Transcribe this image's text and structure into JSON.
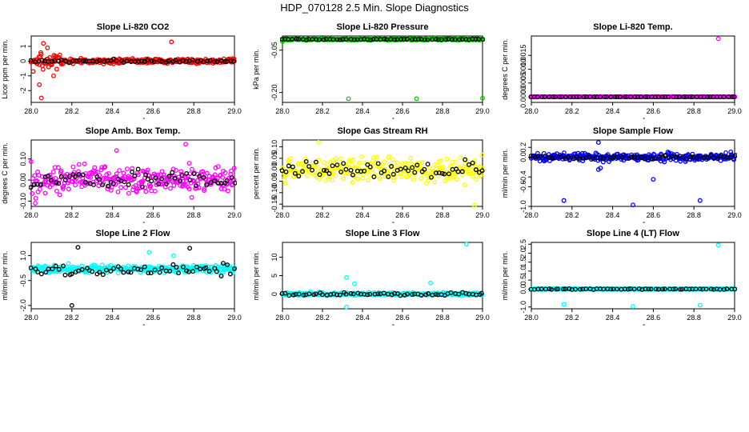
{
  "figure": {
    "title": "HDP_070128  2.5 Min. Slope Diagnostics",
    "background": "#ffffff",
    "overlay_color": "#000000"
  },
  "chart_data": [
    {
      "id": "co2",
      "type": "scatter",
      "title": "Slope Li-820 CO2",
      "ylabel": "Licor ppm per min.",
      "color": "#ff0000",
      "xlim": [
        28.0,
        29.0
      ],
      "ylim": [
        -2.8,
        1.7
      ],
      "x_ticks": [
        "28.0",
        "28.2",
        "28.4",
        "28.6",
        "28.8",
        "29.0"
      ],
      "y_ticks": [
        {
          "value": -2,
          "label": "-2"
        },
        {
          "value": -1,
          "label": "-1"
        },
        {
          "value": 0,
          "label": "0"
        },
        {
          "value": 1,
          "label": "1"
        }
      ],
      "series": [
        {
          "name": "all",
          "spread": 0.18,
          "bursts": [
            [
              28.03,
              28.15,
              0.6
            ]
          ],
          "outliers": [
            [
              28.01,
              -0.7
            ],
            [
              28.05,
              -2.5
            ],
            [
              28.06,
              1.2
            ],
            [
              28.08,
              0.9
            ],
            [
              28.11,
              -1.0
            ],
            [
              28.04,
              -1.6
            ],
            [
              28.69,
              1.3
            ]
          ]
        },
        {
          "name": "selected",
          "spread": 0.12,
          "outliers": []
        }
      ]
    },
    {
      "id": "pressure",
      "type": "scatter",
      "title": "Slope Li-820 Pressure",
      "ylabel": "kPa per min.",
      "color": "#00cc00",
      "xlim": [
        28.0,
        29.0
      ],
      "ylim": [
        -0.235,
        0.0
      ],
      "x_ticks": [
        "28.0",
        "28.2",
        "28.4",
        "28.6",
        "28.8",
        "29.0"
      ],
      "y_ticks": [
        {
          "value": -0.05,
          "label": "-0.05"
        },
        {
          "value": -0.2,
          "label": "-0.20"
        }
      ],
      "series": [
        {
          "name": "all",
          "spread": 0.004,
          "center": -0.012,
          "bursts": [],
          "outliers": [
            [
              28.33,
              -0.222
            ],
            [
              28.67,
              -0.222
            ],
            [
              29.0,
              -0.22
            ],
            [
              28.0,
              -0.02
            ]
          ]
        },
        {
          "name": "selected",
          "spread": 0.002,
          "center": -0.012,
          "outliers": []
        }
      ]
    },
    {
      "id": "temp",
      "type": "scatter",
      "title": "Slope Li-820 Temp.",
      "ylabel": "degrees C per min.",
      "color": "#ff00ff",
      "xlim": [
        28.0,
        29.0
      ],
      "ylim": [
        -0.0002,
        0.0022
      ],
      "x_ticks": [
        "28.0",
        "28.2",
        "28.4",
        "28.6",
        "28.8",
        "29.0"
      ],
      "y_ticks": [
        {
          "value": 0.0,
          "label": "0.0000"
        },
        {
          "value": 0.0005,
          "label": "0.0005"
        },
        {
          "value": 0.001,
          "label": "0.0010"
        },
        {
          "value": 0.0015,
          "label": "0.0015"
        }
      ],
      "series": [
        {
          "name": "all",
          "spread": 0.0,
          "bursts": [],
          "outliers": [
            [
              28.92,
              0.0021
            ]
          ]
        },
        {
          "name": "selected",
          "spread": 0.0,
          "outliers": []
        }
      ]
    },
    {
      "id": "ambbox",
      "type": "scatter",
      "title": "Slope Amb. Box Temp.",
      "ylabel": "degrees C per min.",
      "color": "#ff00ff",
      "xlim": [
        28.0,
        29.0
      ],
      "ylim": [
        -0.125,
        0.19
      ],
      "x_ticks": [
        "28.0",
        "28.2",
        "28.4",
        "28.6",
        "28.8",
        "29.0"
      ],
      "y_ticks": [
        {
          "value": -0.1,
          "label": "-0.10"
        },
        {
          "value": 0.0,
          "label": "0.00"
        },
        {
          "value": 0.1,
          "label": "0.10"
        }
      ],
      "series": [
        {
          "name": "all",
          "spread": 0.07,
          "bursts": [],
          "outliers": [
            [
              28.76,
              0.17
            ],
            [
              28.02,
              -0.11
            ],
            [
              28.42,
              0.14
            ]
          ]
        },
        {
          "name": "selected",
          "spread": 0.05,
          "outliers": []
        }
      ]
    },
    {
      "id": "rh",
      "type": "scatter",
      "title": "Slope Gas Stream RH",
      "ylabel": "percent per min.",
      "color": "#ffff00",
      "xlim": [
        28.0,
        29.0
      ],
      "ylim": [
        -0.16,
        0.13
      ],
      "x_ticks": [
        "28.0",
        "28.2",
        "28.4",
        "28.6",
        "28.8",
        "29.0"
      ],
      "y_ticks": [
        {
          "value": -0.15,
          "label": "-0.15"
        },
        {
          "value": -0.1,
          "label": "-0.10"
        },
        {
          "value": -0.05,
          "label": "-0.05"
        },
        {
          "value": 0.0,
          "label": "0.00"
        },
        {
          "value": 0.05,
          "label": "0.05"
        },
        {
          "value": 0.1,
          "label": "0.10"
        }
      ],
      "series": [
        {
          "name": "all",
          "spread": 0.055,
          "bursts": [],
          "outliers": [
            [
              28.96,
              -0.155
            ],
            [
              28.18,
              0.12
            ]
          ]
        },
        {
          "name": "selected",
          "spread": 0.045,
          "outliers": []
        }
      ]
    },
    {
      "id": "sampleflow",
      "type": "scatter",
      "title": "Slope Sample Flow",
      "ylabel": "ml/min per min.",
      "color": "#0000ff",
      "xlim": [
        28.0,
        29.0
      ],
      "ylim": [
        -1.0,
        0.35
      ],
      "x_ticks": [
        "28.0",
        "28.2",
        "28.4",
        "28.6",
        "28.8",
        "29.0"
      ],
      "y_ticks": [
        {
          "value": -1.0,
          "label": "-1.0"
        },
        {
          "value": -0.6,
          "label": "-0.6"
        },
        {
          "value": -0.4,
          "label": "-0.4"
        },
        {
          "value": 0.0,
          "label": "0.0"
        },
        {
          "value": 0.2,
          "label": "0.2"
        }
      ],
      "series": [
        {
          "name": "all",
          "spread": 0.09,
          "center": 0.0,
          "bursts": [],
          "outliers": [
            [
              28.16,
              -0.88
            ],
            [
              28.5,
              -0.97
            ],
            [
              28.83,
              -0.88
            ],
            [
              28.33,
              0.3
            ],
            [
              28.33,
              -0.25
            ],
            [
              28.34,
              -0.22
            ],
            [
              28.6,
              -0.45
            ]
          ]
        },
        {
          "name": "selected",
          "spread": 0.05,
          "center": 0.0,
          "outliers": []
        }
      ]
    },
    {
      "id": "line2",
      "type": "scatter",
      "title": "Slope Line 2 Flow",
      "ylabel": "ml/min per min.",
      "color": "#00ffff",
      "xlim": [
        28.0,
        29.0
      ],
      "ylim": [
        -2.2,
        1.8
      ],
      "x_ticks": [
        "28.0",
        "28.2",
        "28.4",
        "28.6",
        "28.8",
        "29.0"
      ],
      "y_ticks": [
        {
          "value": -2.0,
          "label": "-2.0"
        },
        {
          "value": -0.5,
          "label": "-0.5"
        },
        {
          "value": 1.0,
          "label": "1.0"
        }
      ],
      "series": [
        {
          "name": "all",
          "spread": 0.28,
          "center": 0.2,
          "bursts": [],
          "outliers": [
            [
              28.58,
              1.2
            ],
            [
              28.7,
              1.0
            ]
          ]
        },
        {
          "name": "selected",
          "spread": 0.4,
          "center": 0.1,
          "outliers": [
            [
              28.2,
              -2.0
            ],
            [
              28.23,
              1.5
            ],
            [
              28.78,
              1.45
            ]
          ]
        }
      ]
    },
    {
      "id": "line3",
      "type": "scatter",
      "title": "Slope Line 3 Flow",
      "ylabel": "ml/min per min.",
      "color": "#00ffff",
      "xlim": [
        28.0,
        29.0
      ],
      "ylim": [
        -4.0,
        14.0
      ],
      "x_ticks": [
        "28.0",
        "28.2",
        "28.4",
        "28.6",
        "28.8",
        "29.0"
      ],
      "y_ticks": [
        {
          "value": 0,
          "label": "0"
        },
        {
          "value": 5,
          "label": "5"
        },
        {
          "value": 10,
          "label": "10"
        }
      ],
      "series": [
        {
          "name": "all",
          "spread": 0.5,
          "center": 0.0,
          "bursts": [],
          "outliers": [
            [
              28.92,
              13.5
            ],
            [
              28.32,
              4.5
            ],
            [
              28.32,
              -3.5
            ],
            [
              28.74,
              3.0
            ],
            [
              28.36,
              2.8
            ]
          ]
        },
        {
          "name": "selected",
          "spread": 0.45,
          "center": 0.0,
          "outliers": []
        }
      ]
    },
    {
      "id": "line4",
      "type": "scatter",
      "title": "Slope Line 4 (LT) Flow",
      "ylabel": "ml/min per min.",
      "color": "#00ffff",
      "xlim": [
        28.0,
        29.0
      ],
      "ylim": [
        -1.1,
        2.6
      ],
      "x_ticks": [
        "28.0",
        "28.2",
        "28.4",
        "28.6",
        "28.8",
        "29.0"
      ],
      "y_ticks": [
        {
          "value": -1.0,
          "label": "-1.0"
        },
        {
          "value": 0.0,
          "label": "0.0"
        },
        {
          "value": 0.5,
          "label": "0.5"
        },
        {
          "value": 1.0,
          "label": "1.0"
        },
        {
          "value": 1.5,
          "label": "1.5"
        },
        {
          "value": 2.0,
          "label": "2.0"
        },
        {
          "value": 2.5,
          "label": "2.5"
        }
      ],
      "series": [
        {
          "name": "all",
          "spread": 0.03,
          "center": 0.0,
          "bursts": [],
          "outliers": [
            [
              28.92,
              2.45
            ],
            [
              28.16,
              -0.85
            ],
            [
              28.5,
              -0.97
            ],
            [
              28.83,
              -0.9
            ]
          ]
        },
        {
          "name": "selected",
          "spread": 0.03,
          "center": 0.0,
          "outliers": []
        }
      ]
    }
  ]
}
